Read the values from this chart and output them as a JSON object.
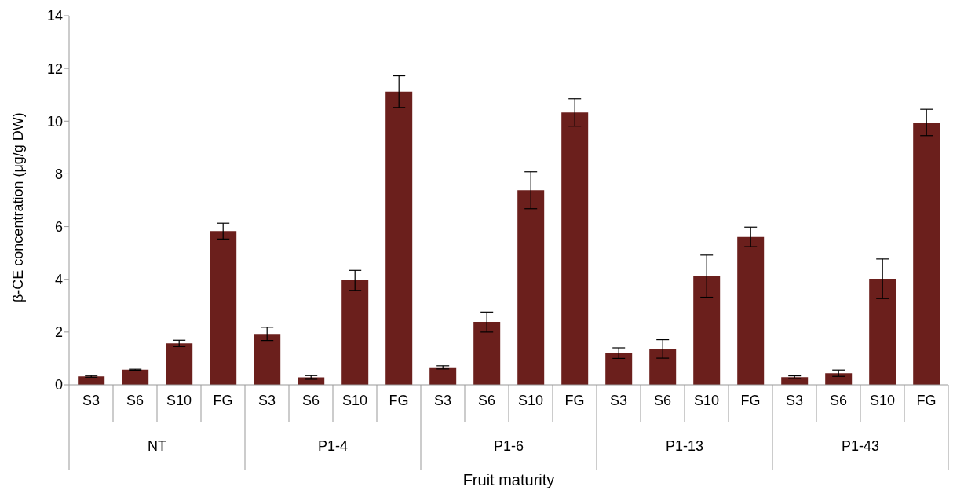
{
  "chart_data": {
    "type": "bar",
    "xlabel": "Fruit maturity",
    "ylabel": "β-CE  concentration  (μg/g DW)",
    "categories": [
      "S3",
      "S6",
      "S10",
      "FG",
      "S3",
      "S6",
      "S10",
      "FG",
      "S3",
      "S6",
      "S10",
      "FG",
      "S3",
      "S6",
      "S10",
      "FG",
      "S3",
      "S6",
      "S10",
      "FG"
    ],
    "annotations": [
      "NT",
      "P1-4",
      "P1-6",
      "P1-13",
      "P1-43"
    ],
    "values": [
      0.32,
      0.57,
      1.57,
      5.83,
      1.93,
      0.28,
      3.96,
      11.12,
      0.66,
      2.38,
      7.38,
      10.33,
      1.2,
      1.36,
      4.12,
      5.61,
      0.29,
      0.44,
      4.02,
      9.95
    ],
    "errors": [
      0.03,
      0.02,
      0.12,
      0.3,
      0.25,
      0.07,
      0.38,
      0.6,
      0.06,
      0.38,
      0.7,
      0.52,
      0.2,
      0.35,
      0.8,
      0.37,
      0.05,
      0.12,
      0.75,
      0.5
    ],
    "color": "#6b1f1c",
    "ylim": [
      0,
      14
    ],
    "yticks": [
      0,
      2,
      4,
      6,
      8,
      10,
      12,
      14
    ],
    "grid": false,
    "legend": false
  }
}
